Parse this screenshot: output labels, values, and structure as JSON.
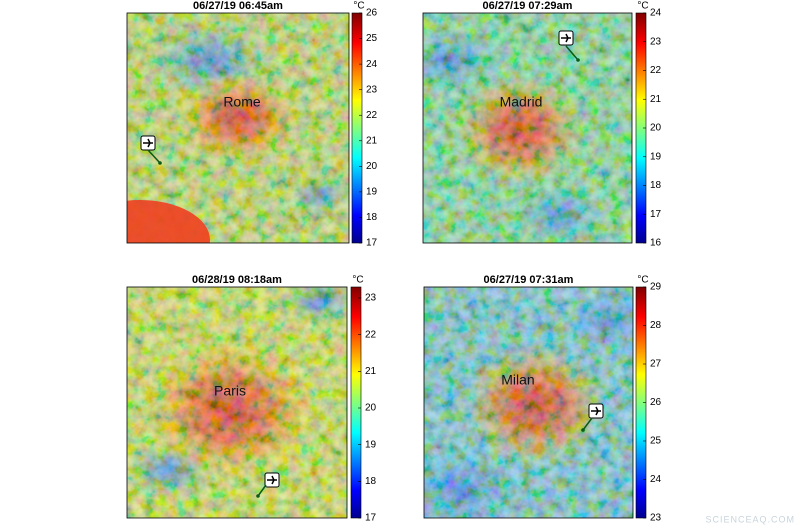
{
  "panels": [
    {
      "title": "06/27/19 06:45am",
      "city": "Rome",
      "unit": "°C",
      "colorbar": {
        "lim": [
          17,
          26
        ],
        "ticks": [
          17,
          18,
          19,
          20,
          21,
          22,
          23,
          24,
          25,
          26
        ]
      }
    },
    {
      "title": "06/27/19 07:29am",
      "city": "Madrid",
      "unit": "°C",
      "colorbar": {
        "lim": [
          16,
          24
        ],
        "ticks": [
          16,
          17,
          18,
          19,
          20,
          21,
          22,
          23,
          24
        ]
      }
    },
    {
      "title": "06/28/19 08:18am",
      "city": "Paris",
      "unit": "°C",
      "colorbar": {
        "lim": [
          17,
          23.3
        ],
        "ticks": [
          17,
          18,
          19,
          20,
          21,
          22,
          23
        ]
      }
    },
    {
      "title": "06/27/19 07:31am",
      "city": "Milan",
      "unit": "°C",
      "colorbar": {
        "lim": [
          23,
          29
        ],
        "ticks": [
          23,
          24,
          25,
          26,
          27,
          28,
          29
        ]
      }
    }
  ],
  "watermark": "SCIENCEAQ.COM"
}
